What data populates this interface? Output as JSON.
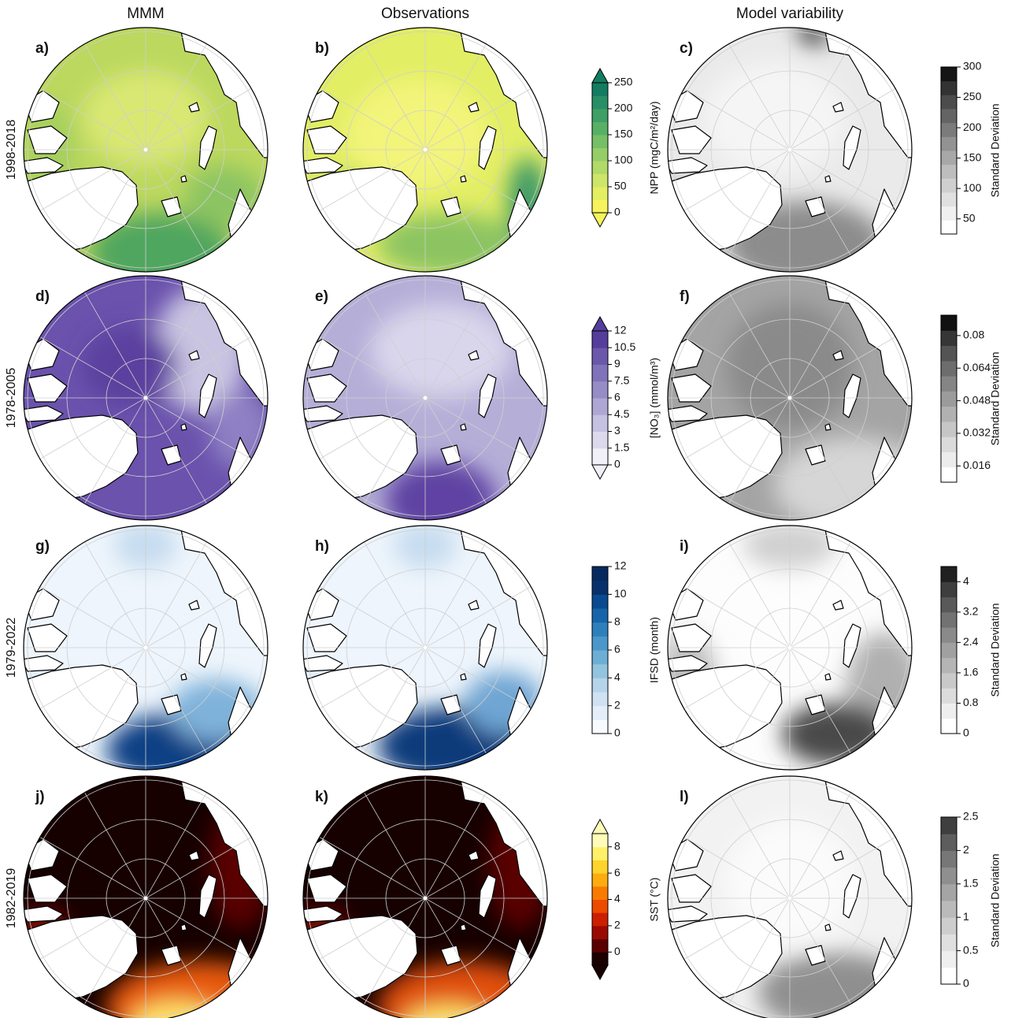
{
  "columns": [
    "MMM",
    "Observations",
    "Model variability"
  ],
  "rows": [
    {
      "period": "1998-2018",
      "panels": [
        "a)",
        "b)",
        "c)"
      ],
      "colorbar": {
        "label": "NPP (mgC/m²/day)",
        "lim": [
          0,
          250
        ],
        "ticks": [
          0,
          50,
          100,
          150,
          200,
          250
        ],
        "extend": "both",
        "colors": [
          "#f6f35c",
          "#e4ee62",
          "#cde56a",
          "#b2da68",
          "#95cd66",
          "#76bf66",
          "#58b066",
          "#3ea067",
          "#288e66",
          "#147c61"
        ]
      },
      "sd_colorbar": {
        "label": "Standard Deviation",
        "lim": [
          25,
          300
        ],
        "ticks": [
          50,
          100,
          150,
          200,
          250,
          300
        ],
        "extend": "neither",
        "colors": [
          "#ffffff",
          "#f0f0f0",
          "#e0e0e0",
          "#cfcfcf",
          "#bdbdbd",
          "#a8a8a8",
          "#929292",
          "#7b7b7b",
          "#646464",
          "#4c4c4c",
          "#333333",
          "#151515"
        ]
      }
    },
    {
      "period": "1978-2005",
      "panels": [
        "d)",
        "e)",
        "f)"
      ],
      "colorbar": {
        "label": "[NO₃] (mmol/m³)",
        "lim": [
          0,
          12
        ],
        "ticks": [
          0,
          1.5,
          3,
          4.5,
          6,
          7.5,
          9,
          10.5,
          12
        ],
        "extend": "both",
        "colors": [
          "#f1eff7",
          "#dcd9ec",
          "#c5c1e0",
          "#aea7d3",
          "#978dc6",
          "#8173b9",
          "#6b58ab",
          "#553d9c"
        ]
      },
      "sd_colorbar": {
        "label": "Standard Deviation",
        "lim": [
          0.008,
          0.09
        ],
        "ticks": [
          0.016,
          0.032,
          0.048,
          0.064,
          0.08
        ],
        "extend": "neither",
        "colors": [
          "#ffffff",
          "#ececec",
          "#dadada",
          "#c6c6c6",
          "#b1b1b1",
          "#9b9b9b",
          "#858585",
          "#6d6d6d",
          "#545454",
          "#363636",
          "#111111"
        ]
      }
    },
    {
      "period": "1979-2022",
      "panels": [
        "g)",
        "h)",
        "i)"
      ],
      "colorbar": {
        "label": "IFSD (month)",
        "lim": [
          0,
          12
        ],
        "ticks": [
          0,
          2,
          4,
          6,
          8,
          10,
          12
        ],
        "extend": "neither",
        "colors": [
          "#f7fbff",
          "#e3eef9",
          "#cfe1f2",
          "#b5d4e9",
          "#93c4de",
          "#6daed5",
          "#4b97c9",
          "#2f7fbc",
          "#1864aa",
          "#0a4a90",
          "#08306b",
          "#062a5e"
        ]
      },
      "sd_colorbar": {
        "label": "Standard Deviation",
        "lim": [
          0,
          4.4
        ],
        "ticks": [
          0,
          0.8,
          1.6,
          2.4,
          3.2,
          4
        ],
        "extend": "neither",
        "colors": [
          "#ffffff",
          "#eeeeee",
          "#dcdcdc",
          "#c9c9c9",
          "#b5b5b5",
          "#a0a0a0",
          "#8a8a8a",
          "#727272",
          "#595959",
          "#3e3e3e",
          "#202020"
        ]
      }
    },
    {
      "period": "1982-2019",
      "panels": [
        "j)",
        "k)",
        "l)"
      ],
      "colorbar": {
        "label": "SST (°C)",
        "lim": [
          -1,
          9
        ],
        "ticks": [
          0,
          2,
          4,
          6,
          8
        ],
        "extend": "both",
        "colors": [
          "#1a0000",
          "#5a0000",
          "#9a0a00",
          "#cc1f00",
          "#ec4a00",
          "#f97a00",
          "#fdac10",
          "#fed32c",
          "#fff06a",
          "#fffbb8"
        ]
      },
      "sd_colorbar": {
        "label": "Standard Deviation",
        "lim": [
          0,
          2.5
        ],
        "ticks": [
          0,
          0.5,
          1,
          1.5,
          2,
          2.5
        ],
        "extend": "neither",
        "colors": [
          "#ffffff",
          "#efefef",
          "#dfdfdf",
          "#cdcdcd",
          "#bababa",
          "#a5a5a5",
          "#8f8f8f",
          "#777777",
          "#5d5d5d",
          "#3f3f3f"
        ]
      }
    }
  ]
}
